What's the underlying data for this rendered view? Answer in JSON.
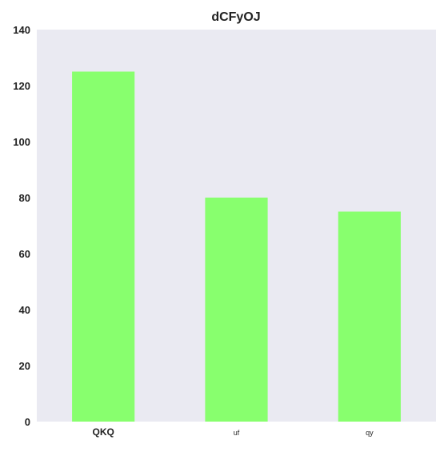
{
  "chart_data": {
    "type": "bar",
    "title": "dCFyOJ",
    "xlabel": "",
    "ylabel": "",
    "categories": [
      "QKQ",
      "uf",
      "qy"
    ],
    "values": [
      125,
      80,
      75
    ],
    "ylim": [
      0,
      140
    ],
    "yticks": [
      0,
      20,
      40,
      60,
      80,
      100,
      120,
      140
    ],
    "grid": false,
    "legend": "none",
    "colors": {
      "bar": "#88ff6e",
      "plot_background": "#eaeaf2",
      "text": "#222222"
    }
  }
}
